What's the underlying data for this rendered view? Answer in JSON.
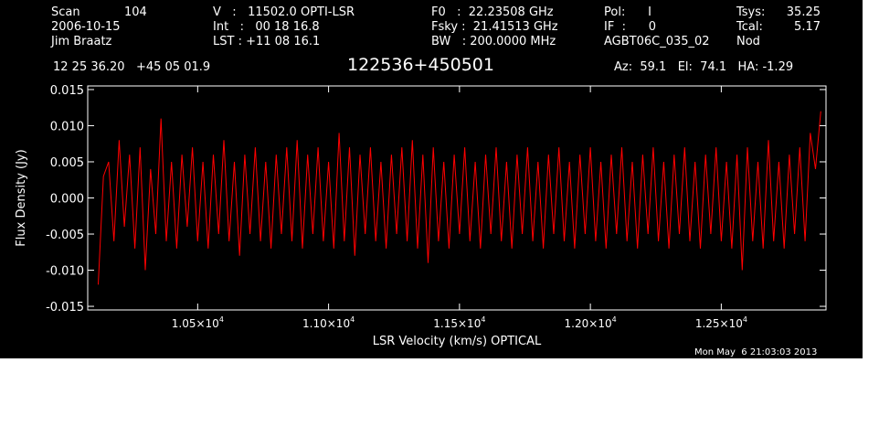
{
  "header": {
    "scan_label": "Scan",
    "scan_number": "104",
    "date": "2006-10-15",
    "observer": "Jim Braatz",
    "velocity_line": "V   :   11502.0 OPTI-LSR",
    "int_line": "Int   :   00 18 16.8",
    "lst_line": "LST : +11 08 16.1",
    "f0_line": "F0   :  22.23508 GHz",
    "fsky_line": "Fsky :  21.41513 GHz",
    "bw_line": "BW   : 200.0000 MHz",
    "pol_line": "Pol:      I",
    "if_line": "IF  :      0",
    "project": "AGBT06C_035_02",
    "tsys_label": "Tsys:",
    "tsys_value": "35.25",
    "tcal_label": "Tcal:",
    "tcal_value": "5.17",
    "mode": "Nod",
    "coords": "12 25 36.20   +45 05 01.9",
    "source_name": "122536+450501",
    "az_el_ha": "Az:  59.1   El:  74.1   HA: -1.29"
  },
  "footer": {
    "timestamp": "Mon May  6 21:03:03 2013"
  },
  "colors": {
    "background": "#000000",
    "axes": "#ffffff",
    "trace": "#ff0000"
  },
  "chart_data": {
    "type": "line",
    "title": "122536+450501",
    "xlabel": "LSR Velocity (km/s) OPTICAL",
    "ylabel": "Flux Density (Jy)",
    "xlim": [
      10080,
      12900
    ],
    "ylim": [
      -0.0155,
      0.0155
    ],
    "x_ticks": [
      {
        "value": 10500,
        "mantissa": "1.05",
        "exp": "4"
      },
      {
        "value": 11000,
        "mantissa": "1.10",
        "exp": "4"
      },
      {
        "value": 11500,
        "mantissa": "1.15",
        "exp": "4"
      },
      {
        "value": 12000,
        "mantissa": "1.20",
        "exp": "4"
      },
      {
        "value": 12500,
        "mantissa": "1.25",
        "exp": "4"
      }
    ],
    "y_ticks": [
      {
        "value": 0.015,
        "label": "0.015"
      },
      {
        "value": 0.01,
        "label": "0.010"
      },
      {
        "value": 0.005,
        "label": "0.005"
      },
      {
        "value": 0.0,
        "label": "0.000"
      },
      {
        "value": -0.005,
        "label": "-0.005"
      },
      {
        "value": -0.01,
        "label": "-0.010"
      },
      {
        "value": -0.015,
        "label": "-0.015"
      }
    ],
    "series": [
      {
        "color": "#ff0000",
        "points": [
          [
            10120,
            -0.012
          ],
          [
            10140,
            0.003
          ],
          [
            10160,
            0.005
          ],
          [
            10180,
            -0.006
          ],
          [
            10200,
            0.008
          ],
          [
            10220,
            -0.004
          ],
          [
            10240,
            0.006
          ],
          [
            10260,
            -0.007
          ],
          [
            10280,
            0.007
          ],
          [
            10300,
            -0.01
          ],
          [
            10320,
            0.004
          ],
          [
            10340,
            -0.005
          ],
          [
            10360,
            0.011
          ],
          [
            10380,
            -0.006
          ],
          [
            10400,
            0.005
          ],
          [
            10420,
            -0.007
          ],
          [
            10440,
            0.006
          ],
          [
            10460,
            -0.004
          ],
          [
            10480,
            0.007
          ],
          [
            10500,
            -0.006
          ],
          [
            10520,
            0.005
          ],
          [
            10540,
            -0.007
          ],
          [
            10560,
            0.006
          ],
          [
            10580,
            -0.005
          ],
          [
            10600,
            0.008
          ],
          [
            10620,
            -0.006
          ],
          [
            10640,
            0.005
          ],
          [
            10660,
            -0.008
          ],
          [
            10680,
            0.006
          ],
          [
            10700,
            -0.005
          ],
          [
            10720,
            0.007
          ],
          [
            10740,
            -0.006
          ],
          [
            10760,
            0.005
          ],
          [
            10780,
            -0.007
          ],
          [
            10800,
            0.006
          ],
          [
            10820,
            -0.005
          ],
          [
            10840,
            0.007
          ],
          [
            10860,
            -0.006
          ],
          [
            10880,
            0.008
          ],
          [
            10900,
            -0.007
          ],
          [
            10920,
            0.006
          ],
          [
            10940,
            -0.005
          ],
          [
            10960,
            0.007
          ],
          [
            10980,
            -0.006
          ],
          [
            11000,
            0.005
          ],
          [
            11020,
            -0.007
          ],
          [
            11040,
            0.009
          ],
          [
            11060,
            -0.006
          ],
          [
            11080,
            0.007
          ],
          [
            11100,
            -0.008
          ],
          [
            11120,
            0.006
          ],
          [
            11140,
            -0.005
          ],
          [
            11160,
            0.007
          ],
          [
            11180,
            -0.006
          ],
          [
            11200,
            0.005
          ],
          [
            11220,
            -0.007
          ],
          [
            11240,
            0.006
          ],
          [
            11260,
            -0.005
          ],
          [
            11280,
            0.007
          ],
          [
            11300,
            -0.006
          ],
          [
            11320,
            0.008
          ],
          [
            11340,
            -0.007
          ],
          [
            11360,
            0.006
          ],
          [
            11380,
            -0.009
          ],
          [
            11400,
            0.007
          ],
          [
            11420,
            -0.006
          ],
          [
            11440,
            0.005
          ],
          [
            11460,
            -0.007
          ],
          [
            11480,
            0.006
          ],
          [
            11500,
            -0.005
          ],
          [
            11520,
            0.007
          ],
          [
            11540,
            -0.006
          ],
          [
            11560,
            0.005
          ],
          [
            11580,
            -0.007
          ],
          [
            11600,
            0.006
          ],
          [
            11620,
            -0.005
          ],
          [
            11640,
            0.007
          ],
          [
            11660,
            -0.006
          ],
          [
            11680,
            0.005
          ],
          [
            11700,
            -0.007
          ],
          [
            11720,
            0.006
          ],
          [
            11740,
            -0.005
          ],
          [
            11760,
            0.007
          ],
          [
            11780,
            -0.006
          ],
          [
            11800,
            0.005
          ],
          [
            11820,
            -0.007
          ],
          [
            11840,
            0.006
          ],
          [
            11860,
            -0.005
          ],
          [
            11880,
            0.007
          ],
          [
            11900,
            -0.006
          ],
          [
            11920,
            0.005
          ],
          [
            11940,
            -0.007
          ],
          [
            11960,
            0.006
          ],
          [
            11980,
            -0.005
          ],
          [
            12000,
            0.007
          ],
          [
            12020,
            -0.006
          ],
          [
            12040,
            0.005
          ],
          [
            12060,
            -0.007
          ],
          [
            12080,
            0.006
          ],
          [
            12100,
            -0.005
          ],
          [
            12120,
            0.007
          ],
          [
            12140,
            -0.006
          ],
          [
            12160,
            0.005
          ],
          [
            12180,
            -0.007
          ],
          [
            12200,
            0.006
          ],
          [
            12220,
            -0.005
          ],
          [
            12240,
            0.007
          ],
          [
            12260,
            -0.006
          ],
          [
            12280,
            0.005
          ],
          [
            12300,
            -0.007
          ],
          [
            12320,
            0.006
          ],
          [
            12340,
            -0.005
          ],
          [
            12360,
            0.007
          ],
          [
            12380,
            -0.006
          ],
          [
            12400,
            0.005
          ],
          [
            12420,
            -0.007
          ],
          [
            12440,
            0.006
          ],
          [
            12460,
            -0.005
          ],
          [
            12480,
            0.007
          ],
          [
            12500,
            -0.006
          ],
          [
            12520,
            0.005
          ],
          [
            12540,
            -0.007
          ],
          [
            12560,
            0.006
          ],
          [
            12580,
            -0.01
          ],
          [
            12600,
            0.007
          ],
          [
            12620,
            -0.006
          ],
          [
            12640,
            0.005
          ],
          [
            12660,
            -0.007
          ],
          [
            12680,
            0.008
          ],
          [
            12700,
            -0.006
          ],
          [
            12720,
            0.005
          ],
          [
            12740,
            -0.007
          ],
          [
            12760,
            0.006
          ],
          [
            12780,
            -0.005
          ],
          [
            12800,
            0.007
          ],
          [
            12820,
            -0.006
          ],
          [
            12840,
            0.009
          ],
          [
            12860,
            0.004
          ],
          [
            12880,
            0.012
          ]
        ]
      }
    ]
  }
}
